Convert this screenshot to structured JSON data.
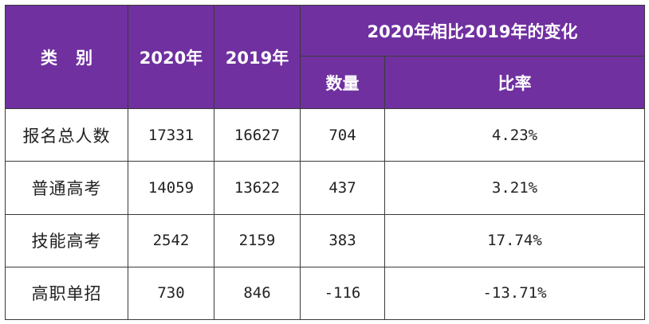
{
  "table": {
    "headers": {
      "category": "类 别",
      "year_2020": "2020年",
      "year_2019": "2019年",
      "change_group": "2020年相比2019年的变化",
      "count": "数量",
      "rate": "比率"
    },
    "rows": [
      {
        "category": "报名总人数",
        "y2020": "17331",
        "y2019": "16627",
        "count": "704",
        "rate": "4.23%"
      },
      {
        "category": "普通高考",
        "y2020": "14059",
        "y2019": "13622",
        "count": "437",
        "rate": "3.21%"
      },
      {
        "category": "技能高考",
        "y2020": "2542",
        "y2019": "2159",
        "count": "383",
        "rate": "17.74%"
      },
      {
        "category": "高职单招",
        "y2020": "730",
        "y2019": "846",
        "count": "-116",
        "rate": "-13.71%"
      }
    ]
  },
  "colors": {
    "header_background": "#7030a0",
    "header_text": "#ffffff",
    "border": "#3a3a3a"
  }
}
